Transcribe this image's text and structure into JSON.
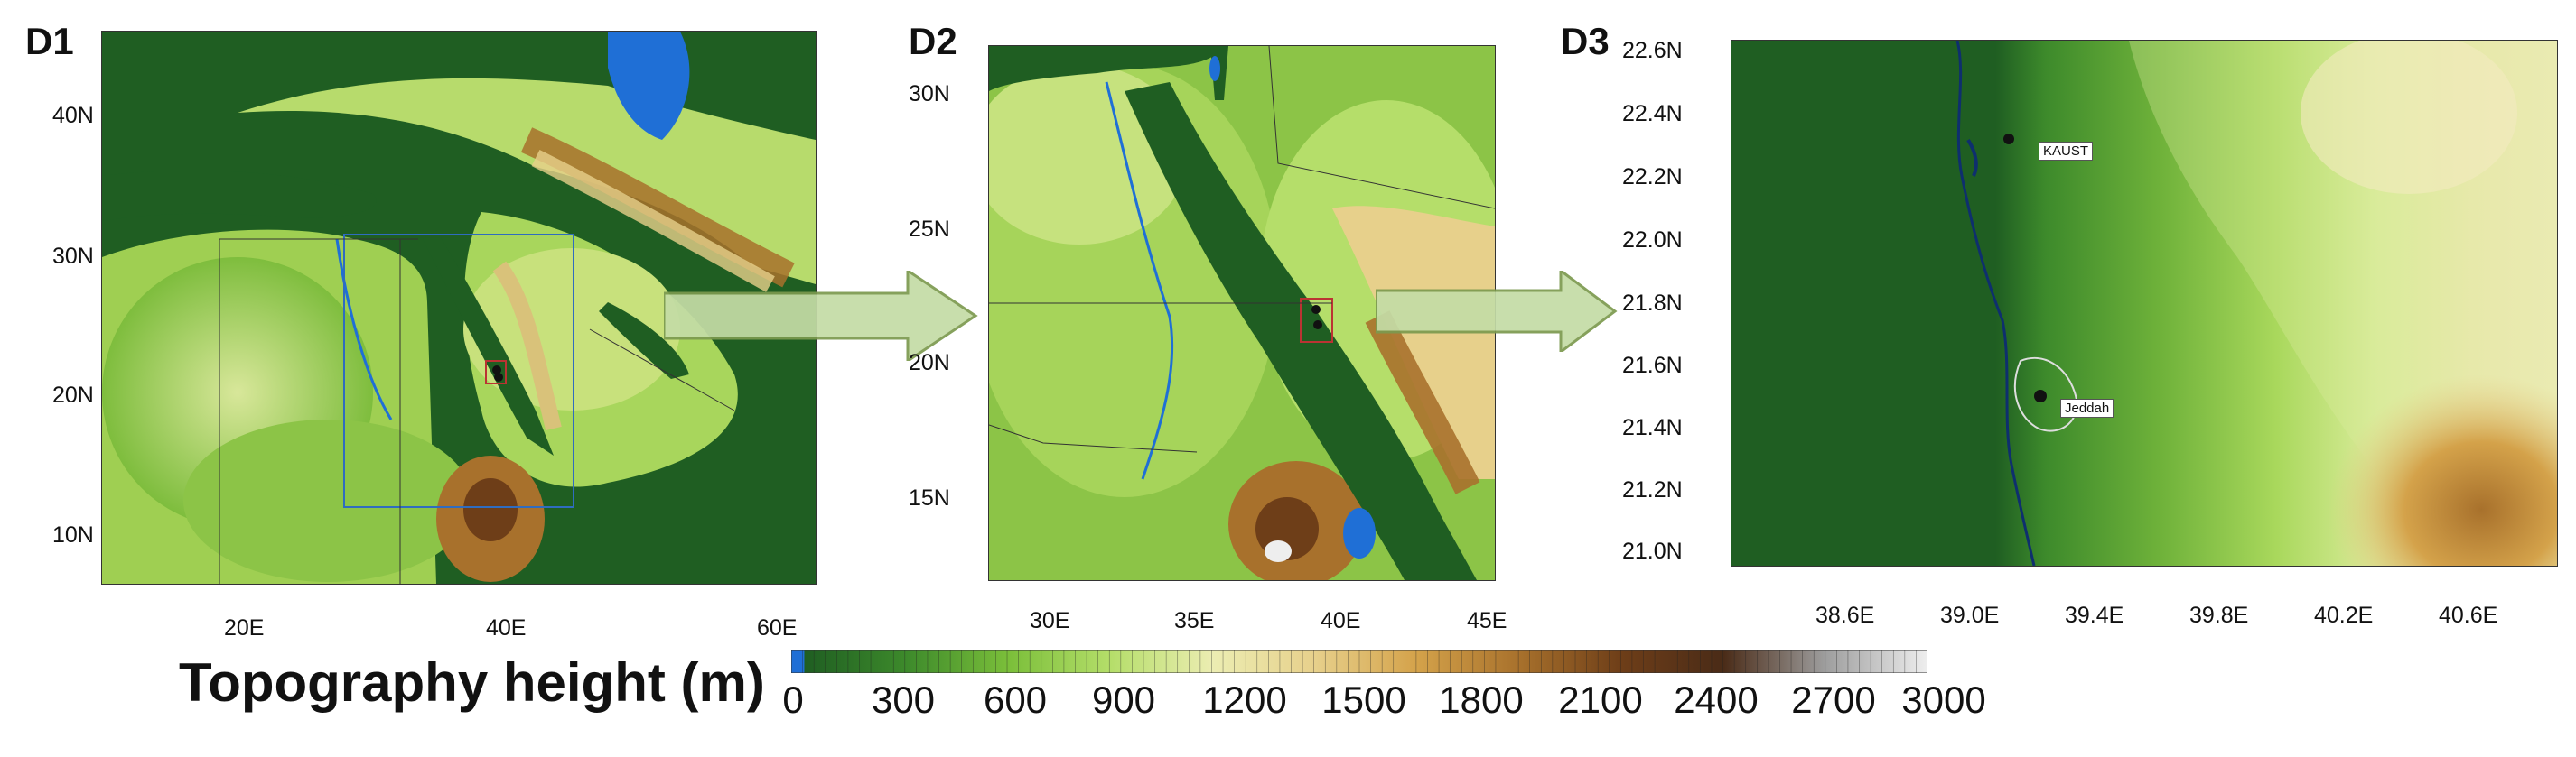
{
  "panels": {
    "d1": {
      "label": "D1",
      "lat_ticks": [
        "40N",
        "30N",
        "20N",
        "10N"
      ],
      "lon_ticks": [
        "20E",
        "40E",
        "60E"
      ]
    },
    "d2": {
      "label": "D2",
      "lat_ticks": [
        "30N",
        "25N",
        "20N",
        "15N"
      ],
      "lon_ticks": [
        "30E",
        "35E",
        "40E",
        "45E"
      ]
    },
    "d3": {
      "label": "D3",
      "lat_ticks": [
        "22.6N",
        "22.4N",
        "22.2N",
        "22.0N",
        "21.8N",
        "21.6N",
        "21.4N",
        "21.2N",
        "21.0N"
      ],
      "lon_ticks": [
        "38.6E",
        "39.0E",
        "39.4E",
        "39.8E",
        "40.2E",
        "40.6E"
      ],
      "markers": [
        "KAUST",
        "Jeddah"
      ]
    }
  },
  "colorbar": {
    "title": "Topography height (m)",
    "ticks": [
      "0",
      "300",
      "600",
      "900",
      "1200",
      "1500",
      "1800",
      "2100",
      "2400",
      "2700",
      "3000"
    ],
    "colors": [
      "#1f6fd6",
      "#1f5e22",
      "#3d8a2b",
      "#7bbf3a",
      "#b5de6a",
      "#ecedb2",
      "#e7d08b",
      "#d4a24a",
      "#a8712c",
      "#6e3e18",
      "#4a2b17",
      "#9e9e9e",
      "#eeeeee"
    ]
  }
}
